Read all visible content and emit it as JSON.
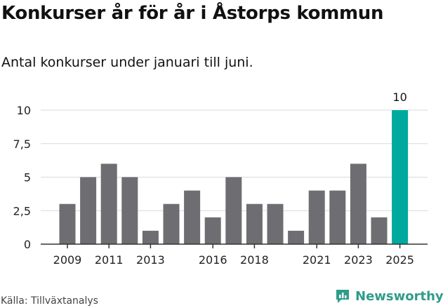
{
  "title": "Konkurser år för år i Åstorps kommun",
  "subtitle": "Antal konkurser under januari till juni.",
  "source": "Källa: Tillväxtanalys",
  "brand": {
    "name": "Newsworthy",
    "icon": "newsworthy-logo-icon",
    "color": "#2f9c8a"
  },
  "colors": {
    "bar": "#6e6d72",
    "highlight": "#00a99d",
    "grid": "#d9d9d9",
    "axis": "#333333"
  },
  "chart_data": {
    "type": "bar",
    "categories": [
      "2009",
      "2010",
      "2011",
      "2012",
      "2013",
      "2014",
      "2015",
      "2016",
      "2017",
      "2018",
      "2019",
      "2020",
      "2021",
      "2022",
      "2023",
      "2024",
      "2025"
    ],
    "values": [
      3,
      5,
      6,
      5,
      1,
      3,
      4,
      2,
      5,
      3,
      3,
      1,
      4,
      4,
      6,
      2,
      10
    ],
    "tick_labels_x": [
      "2009",
      "2011",
      "2013",
      "2016",
      "2018",
      "2021",
      "2023",
      "2025"
    ],
    "y_ticks": [
      "0",
      "2,5",
      "5",
      "7,5",
      "10"
    ],
    "y_tick_values": [
      0,
      2.5,
      5,
      7.5,
      10
    ],
    "ylim": [
      0,
      10
    ],
    "highlight": {
      "category": "2025",
      "value_label": "10"
    },
    "grid": true,
    "xlabel": "",
    "ylabel": ""
  }
}
